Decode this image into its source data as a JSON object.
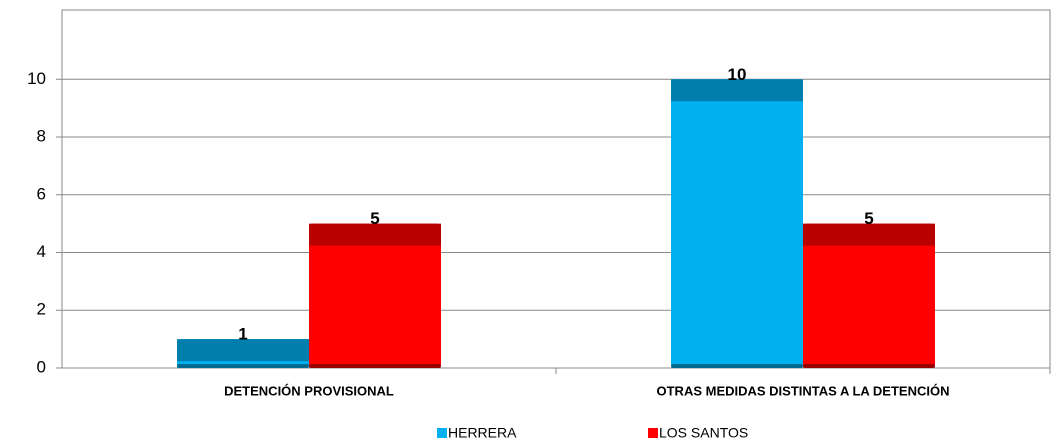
{
  "chart_data": {
    "type": "bar",
    "categories": [
      "DETENCIÓN PROVISIONAL",
      "OTRAS MEDIDAS DISTINTAS A LA DETENCIÓN"
    ],
    "series": [
      {
        "name": "HERRERA",
        "color": "#00b0f0",
        "values": [
          1,
          10
        ]
      },
      {
        "name": "LOS SANTOS",
        "color": "#ff0000",
        "values": [
          5,
          5
        ]
      }
    ],
    "ylim": [
      0,
      12.4
    ],
    "yticks": [
      0,
      2,
      4,
      6,
      8,
      10
    ],
    "grid": true
  }
}
